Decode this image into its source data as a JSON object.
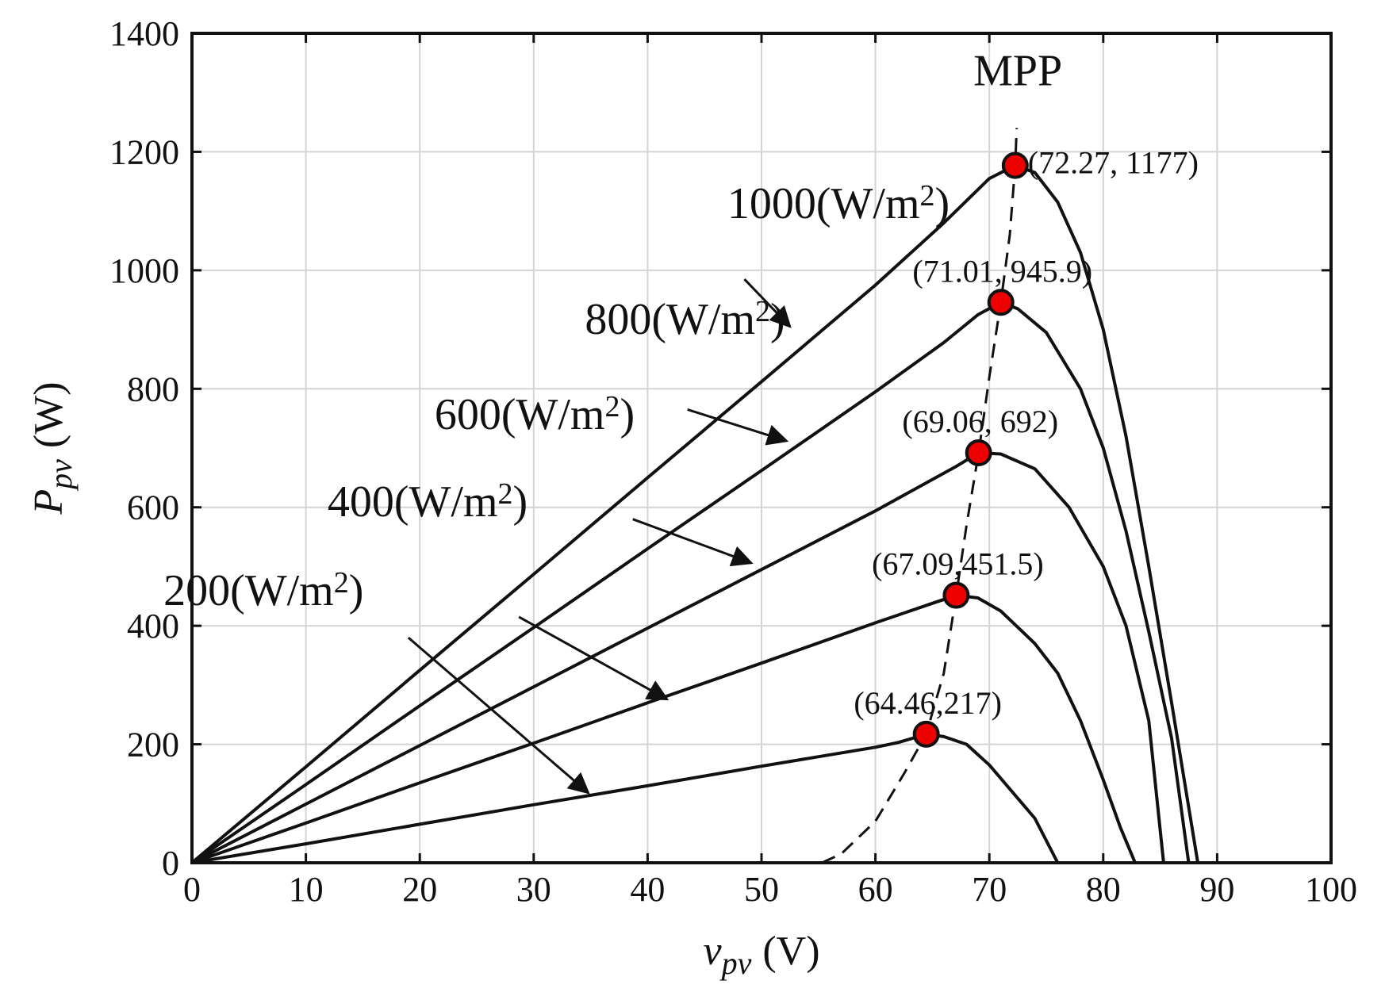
{
  "chart_data": {
    "type": "line",
    "title": "",
    "xlabel": {
      "main": "v",
      "sub": "pv",
      "unit": "(V)"
    },
    "ylabel": {
      "main": "P",
      "sub": "pv",
      "unit": "(W)"
    },
    "xlim": [
      0,
      100
    ],
    "ylim": [
      0,
      1400
    ],
    "xticks": [
      0,
      10,
      20,
      30,
      40,
      50,
      60,
      70,
      80,
      90,
      100
    ],
    "yticks": [
      0,
      200,
      400,
      600,
      800,
      1000,
      1200,
      1400
    ],
    "grid": true,
    "series": [
      {
        "name": "1000(W/m2)",
        "label_main": "1000(W/m",
        "label_sup": "2",
        "label_close": ")",
        "points": [
          [
            0,
            0
          ],
          [
            10,
            162
          ],
          [
            20,
            325
          ],
          [
            30,
            487
          ],
          [
            40,
            650
          ],
          [
            50,
            812
          ],
          [
            60,
            975
          ],
          [
            66,
            1080
          ],
          [
            70,
            1155
          ],
          [
            72.27,
            1177
          ],
          [
            74,
            1165
          ],
          [
            76,
            1115
          ],
          [
            78,
            1030
          ],
          [
            80,
            900
          ],
          [
            82,
            720
          ],
          [
            84,
            500
          ],
          [
            86,
            270
          ],
          [
            88.3,
            0
          ]
        ],
        "mpp": [
          72.27,
          1177
        ],
        "mpp_label": "(72.27, 1177)",
        "label_anchor": [
          47,
          1088
        ],
        "arrow_tail": [
          48.5,
          985
        ],
        "arrow_head": [
          52.5,
          905
        ]
      },
      {
        "name": "800(W/m2)",
        "label_main": "800(W/m",
        "label_sup": "2",
        "label_close": ")",
        "points": [
          [
            0,
            0
          ],
          [
            10,
            132
          ],
          [
            20,
            265
          ],
          [
            30,
            397
          ],
          [
            40,
            530
          ],
          [
            50,
            662
          ],
          [
            60,
            795
          ],
          [
            66,
            878
          ],
          [
            69,
            925
          ],
          [
            71.01,
            945.9
          ],
          [
            72.5,
            935
          ],
          [
            75,
            895
          ],
          [
            78,
            800
          ],
          [
            80,
            700
          ],
          [
            82,
            560
          ],
          [
            84,
            390
          ],
          [
            86,
            210
          ],
          [
            87.5,
            0
          ]
        ],
        "mpp": [
          71.01,
          945.9
        ],
        "mpp_label": "(71.01, 945.9)",
        "label_anchor": [
          34.5,
          893
        ],
        "arrow_tail": [
          43.5,
          765
        ],
        "arrow_head": [
          52.2,
          712
        ]
      },
      {
        "name": "600(W/m2)",
        "label_main": "600(W/m",
        "label_sup": "2",
        "label_close": ")",
        "points": [
          [
            0,
            0
          ],
          [
            10,
            99
          ],
          [
            20,
            198
          ],
          [
            30,
            297
          ],
          [
            40,
            396
          ],
          [
            50,
            495
          ],
          [
            60,
            594
          ],
          [
            67,
            668
          ],
          [
            69.06,
            692
          ],
          [
            71,
            690
          ],
          [
            74,
            665
          ],
          [
            77,
            600
          ],
          [
            80,
            500
          ],
          [
            82,
            400
          ],
          [
            84,
            240
          ],
          [
            85.3,
            0
          ]
        ],
        "mpp": [
          69.06,
          692
        ],
        "mpp_label": "(69.06, 692)",
        "label_anchor": [
          21.3,
          732
        ],
        "arrow_tail": [
          38.7,
          580
        ],
        "arrow_head": [
          49.1,
          506
        ]
      },
      {
        "name": "400(W/m2)",
        "label_main": "400(W/m",
        "label_sup": "2",
        "label_close": ")",
        "points": [
          [
            0,
            0
          ],
          [
            10,
            67
          ],
          [
            20,
            135
          ],
          [
            30,
            202
          ],
          [
            40,
            270
          ],
          [
            50,
            337
          ],
          [
            60,
            405
          ],
          [
            65,
            438
          ],
          [
            67.09,
            451.5
          ],
          [
            69,
            447
          ],
          [
            71,
            425
          ],
          [
            74,
            370
          ],
          [
            76,
            320
          ],
          [
            78,
            240
          ],
          [
            80,
            140
          ],
          [
            81.5,
            60
          ],
          [
            82.8,
            0
          ]
        ],
        "mpp": [
          67.09,
          451.5
        ],
        "mpp_label": "(67.09,451.5)",
        "label_anchor": [
          11.9,
          585
        ],
        "arrow_tail": [
          28.7,
          415
        ],
        "arrow_head": [
          41.7,
          276
        ]
      },
      {
        "name": "200(W/m2)",
        "label_main": "200(W/m",
        "label_sup": "2",
        "label_close": ")",
        "points": [
          [
            0,
            0
          ],
          [
            10,
            32
          ],
          [
            20,
            65
          ],
          [
            30,
            98
          ],
          [
            40,
            130
          ],
          [
            50,
            163
          ],
          [
            60,
            195
          ],
          [
            62,
            203
          ],
          [
            64.46,
            217
          ],
          [
            66,
            213
          ],
          [
            68,
            200
          ],
          [
            70,
            165
          ],
          [
            72,
            120
          ],
          [
            74,
            75
          ],
          [
            76,
            0
          ]
        ],
        "mpp": [
          64.46,
          217
        ],
        "mpp_label": "(64.46,217)",
        "label_anchor": [
          -2.5,
          435
        ],
        "arrow_tail": [
          19,
          380
        ],
        "arrow_head": [
          34.8,
          118
        ]
      }
    ],
    "mpp_trace_label": "MPP",
    "mpp_trace_points": [
      [
        55.3,
        0
      ],
      [
        57,
        15
      ],
      [
        60,
        70
      ],
      [
        62.5,
        150
      ],
      [
        64.46,
        217
      ],
      [
        66,
        320
      ],
      [
        67.09,
        451.5
      ],
      [
        68,
        570
      ],
      [
        69.06,
        692
      ],
      [
        70,
        820
      ],
      [
        71.01,
        945.9
      ],
      [
        71.8,
        1060
      ],
      [
        72.27,
        1177
      ],
      [
        72.4,
        1240
      ]
    ],
    "mpp_label_anchor": [
      68.6,
      1312
    ],
    "mpp_marker_color": "#ee0000"
  }
}
